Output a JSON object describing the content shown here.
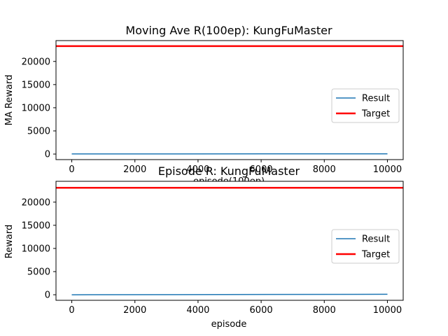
{
  "chart_data": [
    {
      "type": "line",
      "title": "Moving Ave R(100ep): KungFuMaster",
      "xlabel": "episode(100ep)",
      "ylabel": "MA Reward",
      "xlim": [
        -500,
        10500
      ],
      "ylim": [
        -1200,
        24500
      ],
      "xticks": [
        0,
        2000,
        4000,
        6000,
        8000,
        10000
      ],
      "yticks": [
        0,
        5000,
        10000,
        15000,
        20000
      ],
      "legend_position": "center-right",
      "series": [
        {
          "name": "Result",
          "color": "#1f77b4",
          "x": [
            0,
            10000
          ],
          "y": [
            20,
            50
          ]
        },
        {
          "name": "Target",
          "color": "#ff0000",
          "x": [
            -500,
            10500
          ],
          "y": [
            23300,
            23300
          ]
        }
      ]
    },
    {
      "type": "line",
      "title": "Episode R: KungFuMaster",
      "xlabel": "episode",
      "ylabel": "Reward",
      "xlim": [
        -500,
        10500
      ],
      "ylim": [
        -1200,
        24500
      ],
      "xticks": [
        0,
        2000,
        4000,
        6000,
        8000,
        10000
      ],
      "yticks": [
        0,
        5000,
        10000,
        15000,
        20000
      ],
      "legend_position": "center-right",
      "series": [
        {
          "name": "Result",
          "color": "#1f77b4",
          "x": [
            0,
            10000
          ],
          "y": [
            0,
            100
          ]
        },
        {
          "name": "Target",
          "color": "#ff0000",
          "x": [
            -500,
            10500
          ],
          "y": [
            23100,
            23100
          ]
        }
      ]
    }
  ]
}
